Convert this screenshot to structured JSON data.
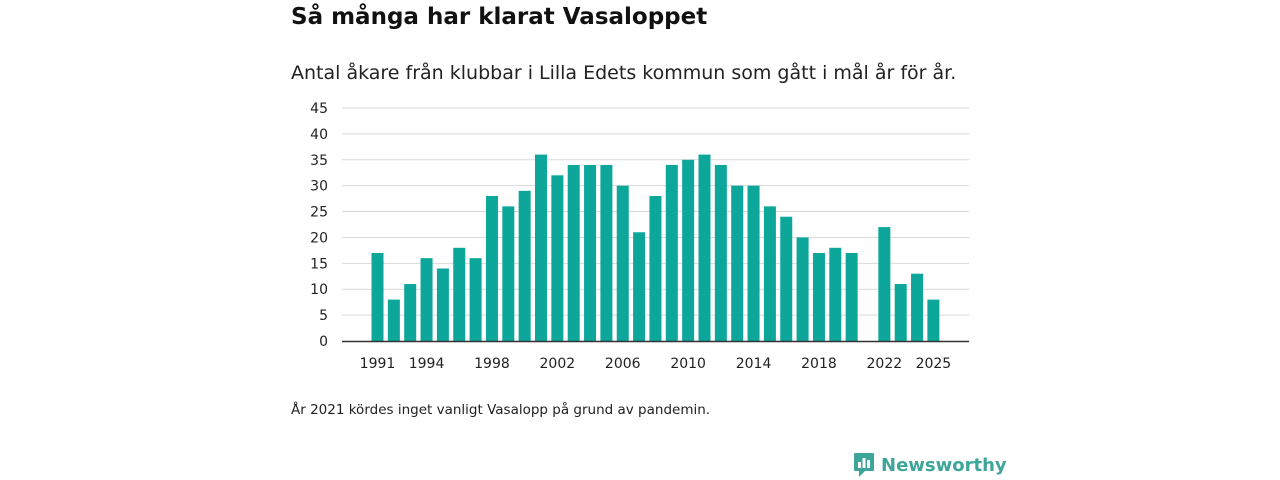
{
  "title": "Så många har klarat Vasaloppet",
  "subtitle": "Antal åkare från klubbar i Lilla Edets kommun som gått i mål år för år.",
  "footnote": "År 2021 kördes inget vanligt Vasalopp på grund av pandemin.",
  "brand": {
    "name": "Newsworthy",
    "logo_icon": "newsworthy-logo-icon",
    "color": "#3ea59a"
  },
  "chart_data": {
    "type": "bar",
    "title": "Så många har klarat Vasaloppet",
    "subtitle": "Antal åkare från klubbar i Lilla Edets kommun som gått i mål år för år.",
    "xlabel": "",
    "ylabel": "",
    "categories": [
      1991,
      1992,
      1993,
      1994,
      1995,
      1996,
      1997,
      1998,
      1999,
      2000,
      2001,
      2002,
      2003,
      2004,
      2005,
      2006,
      2007,
      2008,
      2009,
      2010,
      2011,
      2012,
      2013,
      2014,
      2015,
      2016,
      2017,
      2018,
      2019,
      2020,
      2021,
      2022,
      2023,
      2024,
      2025
    ],
    "values": [
      17,
      8,
      11,
      16,
      14,
      18,
      16,
      28,
      26,
      29,
      36,
      32,
      34,
      34,
      34,
      30,
      21,
      28,
      34,
      35,
      36,
      34,
      30,
      30,
      26,
      24,
      20,
      17,
      18,
      17,
      null,
      22,
      11,
      13,
      8
    ],
    "x_tick_labels": [
      "1991",
      "1994",
      "1998",
      "2002",
      "2006",
      "2010",
      "2014",
      "2018",
      "2022",
      "2025"
    ],
    "y_ticks": [
      0,
      5,
      10,
      15,
      20,
      25,
      30,
      35,
      40,
      45
    ],
    "ylim": [
      0,
      45
    ],
    "grid": true,
    "bar_color": "#0ca69a",
    "grid_color": "#d9d9d9",
    "axis_color": "#333333"
  }
}
